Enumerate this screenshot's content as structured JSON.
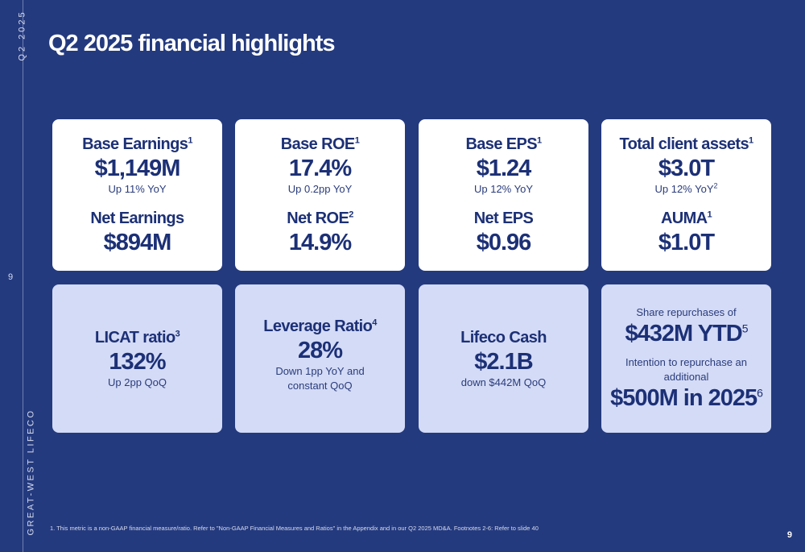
{
  "side": {
    "quarter": "Q2 2025",
    "brand": "GREAT-WEST LIFECO",
    "page": "9"
  },
  "title": "Q2 2025 financial highlights",
  "top_cards": [
    {
      "label1": "Base Earnings",
      "sup1": "1",
      "value1": "$1,149M",
      "note": "Up 11% YoY",
      "note_sup": "",
      "label2": "Net Earnings",
      "sup2": "",
      "value2": "$894M"
    },
    {
      "label1": "Base ROE",
      "sup1": "1",
      "value1": "17.4%",
      "note": "Up 0.2pp YoY",
      "note_sup": "",
      "label2": "Net ROE",
      "sup2": "2",
      "value2": "14.9%"
    },
    {
      "label1": "Base EPS",
      "sup1": "1",
      "value1": "$1.24",
      "note": "Up 12% YoY",
      "note_sup": "",
      "label2": "Net EPS",
      "sup2": "",
      "value2": "$0.96"
    },
    {
      "label1": "Total client assets",
      "sup1": "1",
      "value1": "$3.0T",
      "note": "Up 12% YoY",
      "note_sup": "2",
      "label2": "AUMA",
      "sup2": "1",
      "value2": "$1.0T"
    }
  ],
  "bottom_cards": [
    {
      "label": "LICAT ratio",
      "sup": "3",
      "value": "132%",
      "note_line1": "Up 2pp QoQ",
      "note_line2": ""
    },
    {
      "label": "Leverage Ratio",
      "sup": "4",
      "value": "28%",
      "note_line1": "Down 1pp YoY and",
      "note_line2": "constant QoQ"
    },
    {
      "label": "Lifeco Cash",
      "sup": "",
      "value": "$2.1B",
      "note_line1": "down $442M QoQ",
      "note_line2": ""
    }
  ],
  "buyback": {
    "line1": "Share repurchases of",
    "value1": "$432M YTD",
    "sup1": "5",
    "line2a": "Intention to repurchase an",
    "line2b": "additional",
    "value2": "$500M in 2025",
    "sup2": "6"
  },
  "footnote": "1. This metric is a non-GAAP financial measure/ratio. Refer to \"Non-GAAP Financial Measures and Ratios\" in the Appendix and in our Q2 2025 MD&A. Footnotes 2-6: Refer to slide 40",
  "page_number": "9"
}
